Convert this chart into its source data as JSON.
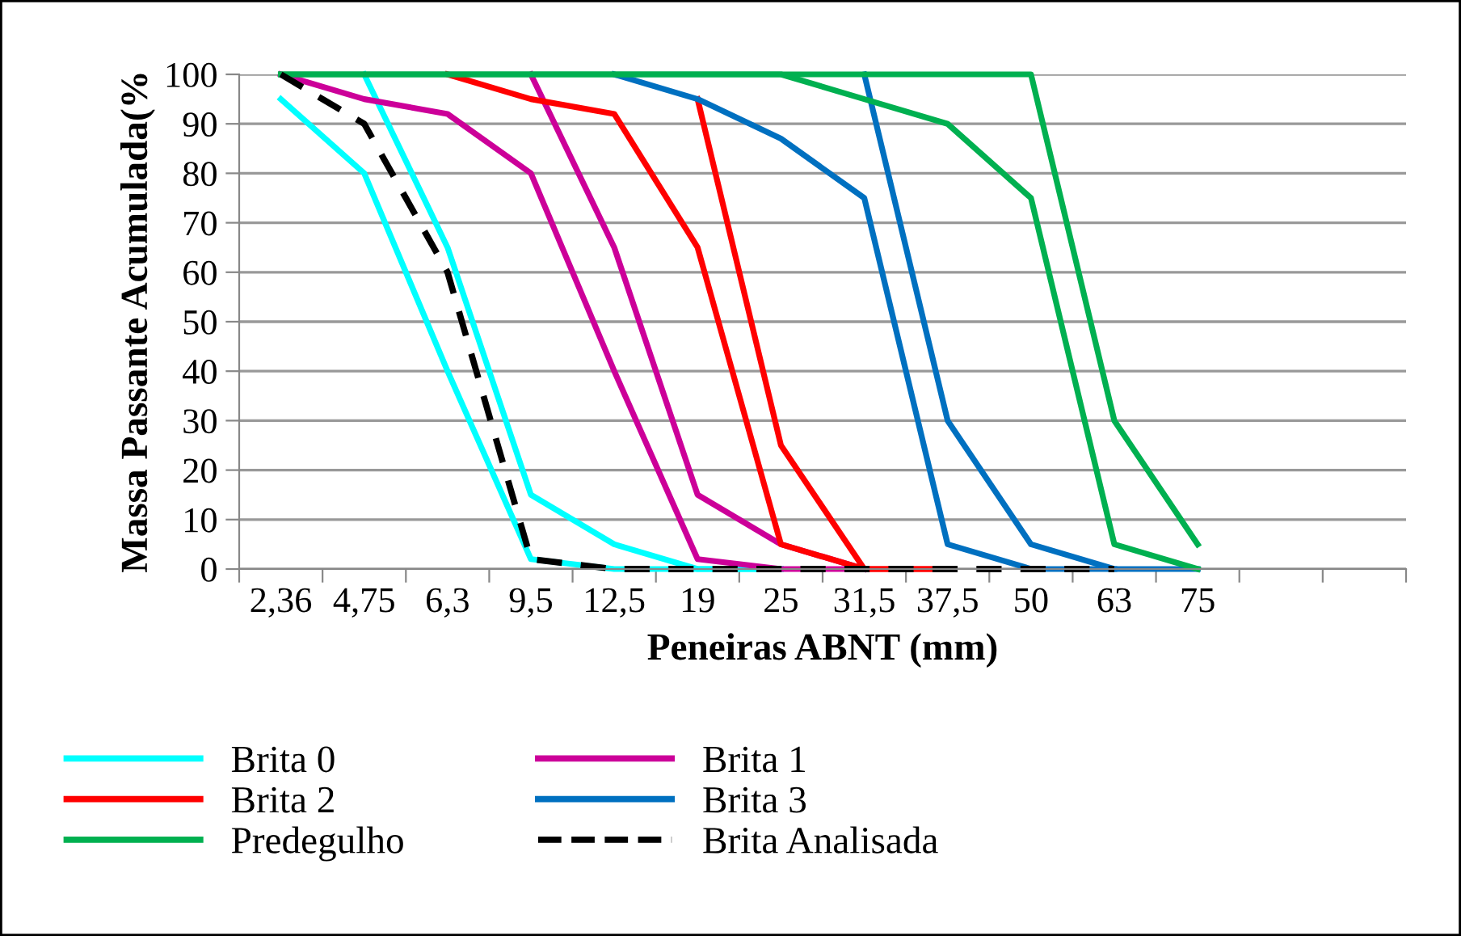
{
  "chart_data": {
    "type": "line",
    "xlabel": "Peneiras ABNT (mm)",
    "ylabel": "Massa Passante Acumulada(%",
    "categories": [
      "2,36",
      "4,75",
      "6,3",
      "9,5",
      "12,5",
      "19",
      "25",
      "31,5",
      "37,5",
      "50",
      "63",
      "75",
      null,
      null
    ],
    "ylim": [
      0,
      100
    ],
    "yticks": [
      0,
      10,
      20,
      30,
      40,
      50,
      60,
      70,
      80,
      90,
      100
    ],
    "grid": "y",
    "legend": "bottom",
    "marker": "none",
    "series": [
      {
        "name": "Brita 0",
        "color": "#00ffff",
        "values": [
          null,
          100,
          65,
          15,
          5,
          0,
          0,
          null,
          null,
          null,
          null,
          null,
          null,
          null
        ]
      },
      {
        "color": "#00ffff",
        "values": [
          95,
          80,
          40,
          2,
          0,
          0,
          0,
          null,
          null,
          null,
          null,
          null,
          null,
          null
        ]
      },
      {
        "name": "Brita 1",
        "color": "#cc0099",
        "values": [
          100,
          95,
          92,
          80,
          40,
          2,
          0,
          0,
          null,
          null,
          null,
          null,
          null,
          null
        ]
      },
      {
        "color": "#cc0099",
        "values": [
          null,
          null,
          null,
          100,
          65,
          15,
          5,
          0,
          null,
          null,
          null,
          null,
          null,
          null
        ]
      },
      {
        "name": "Brita 2",
        "color": "#ff0000",
        "values": [
          null,
          null,
          100,
          95,
          92,
          65,
          5,
          0,
          0,
          null,
          null,
          null,
          null,
          null
        ]
      },
      {
        "color": "#ff0000",
        "values": [
          null,
          null,
          null,
          null,
          null,
          95,
          25,
          0,
          0,
          null,
          null,
          null,
          null,
          null
        ]
      },
      {
        "name": "Brita 3",
        "color": "#0070c0",
        "values": [
          null,
          null,
          null,
          null,
          100,
          95,
          87,
          75,
          5,
          0,
          0,
          null,
          null,
          null
        ]
      },
      {
        "color": "#0070c0",
        "values": [
          null,
          null,
          null,
          null,
          null,
          null,
          null,
          100,
          30,
          5,
          0,
          0,
          null,
          null
        ]
      },
      {
        "name": "Predegulho",
        "color": "#00b050",
        "values": [
          100,
          100,
          100,
          100,
          100,
          100,
          100,
          95,
          90,
          75,
          5,
          0,
          null,
          null
        ]
      },
      {
        "color": "#00b050",
        "values": [
          100,
          100,
          100,
          100,
          100,
          100,
          100,
          100,
          100,
          100,
          30,
          5,
          null,
          null
        ]
      },
      {
        "name": "Brita Analisada",
        "color": "#000000",
        "line_style": "dashed",
        "values": [
          100,
          90,
          60,
          2,
          0,
          0,
          0,
          0,
          0,
          0,
          0,
          null,
          null,
          null
        ]
      }
    ]
  }
}
